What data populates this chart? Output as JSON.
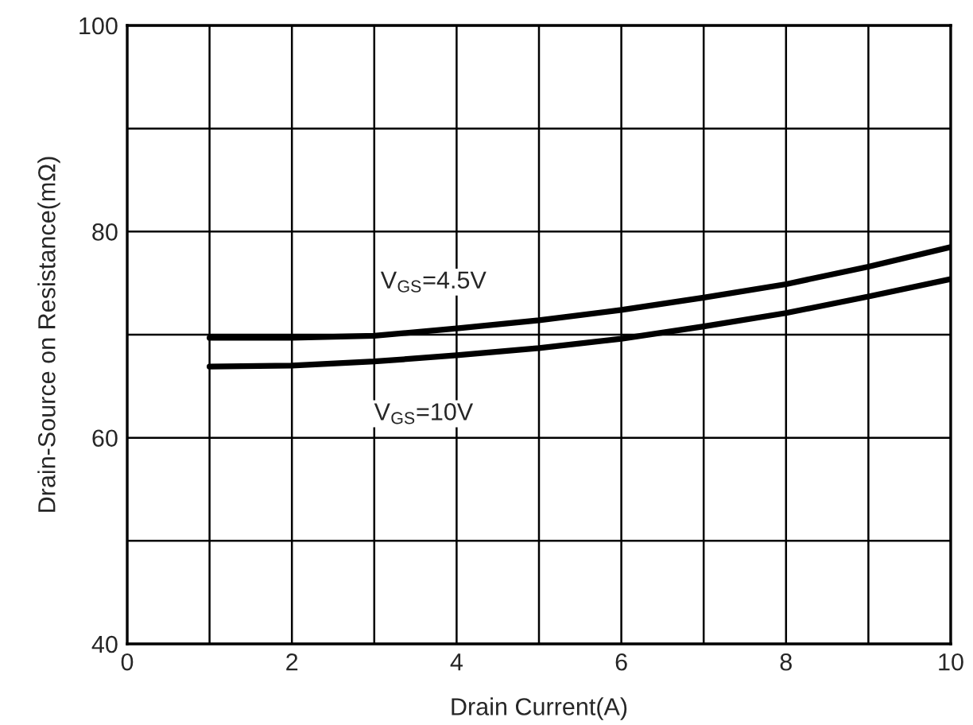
{
  "chart_data": {
    "type": "line",
    "xlabel": "Drain Current(A)",
    "ylabel": "Drain-Source on Resistance(mΩ)",
    "x": [
      1,
      2,
      3,
      4,
      5,
      6,
      7,
      8,
      9,
      10
    ],
    "series": [
      {
        "color": "#000000",
        "values": [
          69.7,
          69.7,
          69.9,
          70.6,
          71.4,
          72.4,
          73.6,
          74.9,
          76.6,
          78.5
        ]
      },
      {
        "color": "#000000",
        "values": [
          66.9,
          67.0,
          67.4,
          68.0,
          68.7,
          69.6,
          70.8,
          72.1,
          73.7,
          75.4
        ]
      }
    ],
    "annotations": [
      "V$_{GS}$=4.5V",
      "V$_{GS}$=10V"
    ],
    "xlim": [
      0,
      10
    ],
    "ylim": [
      40,
      100
    ],
    "xticks": [
      0,
      {
        "value": 1,
        "label": null
      },
      2,
      {
        "value": 3,
        "label": null
      },
      4,
      {
        "value": 5,
        "label": null
      },
      6,
      {
        "value": 7,
        "label": null
      },
      8,
      {
        "value": 9,
        "label": null
      },
      10
    ],
    "yticks": [
      40,
      {
        "value": 50,
        "label": null
      },
      60,
      {
        "value": 70,
        "label": null
      },
      80,
      {
        "value": 90,
        "label": null
      },
      100
    ],
    "grid": true,
    "legend": false,
    "marker": "none",
    "line_style": "solid"
  }
}
